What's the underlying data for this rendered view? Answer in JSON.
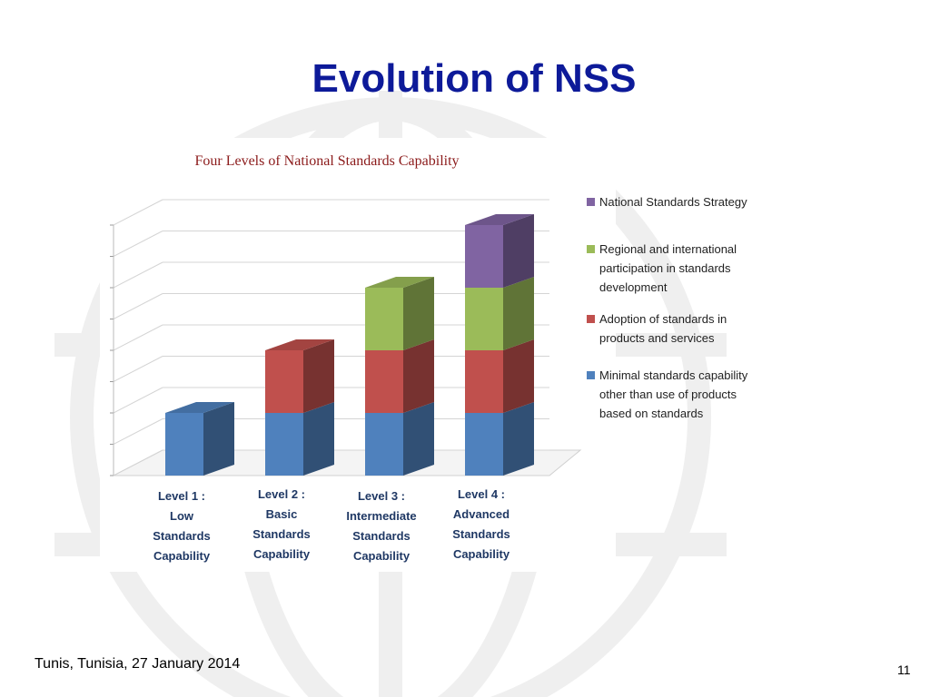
{
  "slide": {
    "title": "Evolution of NSS",
    "footer_left": "Tunis, Tunisia, 27 January 2014",
    "page_number": "11"
  },
  "colors": {
    "title": "#0d1a99",
    "chart_title": "#8b1a1a",
    "level_labels": "#1f3864",
    "minimal": "#4f81bd",
    "adoption": "#c0504d",
    "regional": "#9bbb59",
    "strategy": "#8064a2"
  },
  "chart_data": {
    "type": "bar",
    "stacked": true,
    "three_d": true,
    "title": "Four Levels of National Standards Capability",
    "categories": [
      "Level 1 : Low Standards Capability",
      "Level 2 : Basic Standards Capability",
      "Level 3 : Intermediate Standards Capability",
      "Level 4 : Advanced Standards Capability"
    ],
    "category_lines": [
      [
        "Level 1 :",
        "Low",
        "Standards",
        "Capability"
      ],
      [
        "Level 2 :",
        "Basic",
        "Standards",
        "Capability"
      ],
      [
        "Level 3 :",
        "Intermediate",
        "Standards",
        "Capability"
      ],
      [
        "Level 4 :",
        "Advanced",
        "Standards",
        "Capability"
      ]
    ],
    "series": [
      {
        "name": "Minimal standards capability other than use of products based on standards",
        "legend_lines": [
          "Minimal standards capability",
          "other than use of products",
          "based on standards"
        ],
        "color": "#4f81bd",
        "values": [
          1,
          1,
          1,
          1
        ]
      },
      {
        "name": "Adoption of standards in products and services",
        "legend_lines": [
          "Adoption of standards in",
          "products and services"
        ],
        "color": "#c0504d",
        "values": [
          0,
          1,
          1,
          1
        ]
      },
      {
        "name": "Regional and international participation in standards development",
        "legend_lines": [
          "Regional and international",
          "participation in standards",
          "development"
        ],
        "color": "#9bbb59",
        "values": [
          0,
          0,
          1,
          1
        ]
      },
      {
        "name": "National Standards Strategy",
        "legend_lines": [
          "National Standards Strategy"
        ],
        "color": "#8064a2",
        "values": [
          0,
          0,
          0,
          1
        ]
      }
    ],
    "ylim": [
      0,
      4
    ],
    "grid": true,
    "legend_position": "right"
  }
}
